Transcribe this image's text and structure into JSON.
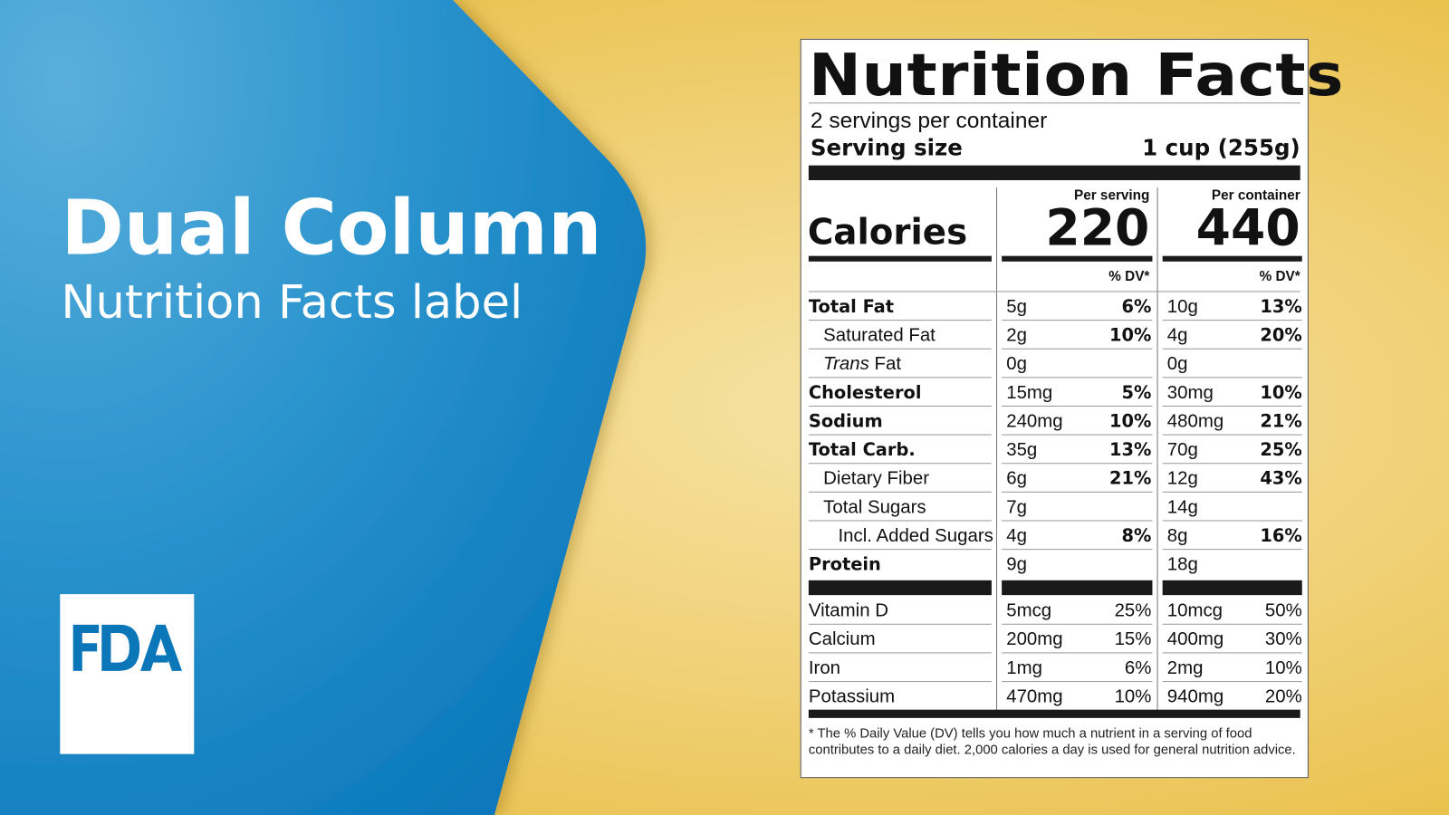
{
  "headline": {
    "title": "Dual Column",
    "subtitle": "Nutrition Facts label"
  },
  "logo": {
    "text": "FDA"
  },
  "colors": {
    "blue_light": "#4ea8d8",
    "blue_dark": "#0a78bb",
    "yellow": "#f1d27a",
    "fda_blue": "#0b76b8"
  },
  "label": {
    "title": "Nutrition Facts",
    "servings": "2 servings per container",
    "serving_size_label": "Serving size",
    "serving_size_value": "1 cup (255g)",
    "col1_header": "Per serving",
    "col2_header": "Per container",
    "calories_label": "Calories",
    "calories_col1": "220",
    "calories_col2": "440",
    "dv_header": "% DV*",
    "nutrients": [
      {
        "name": "Total Fat",
        "bold": true,
        "level": 0,
        "v1": "5g",
        "p1": "6%",
        "v2": "10g",
        "p2": "13%"
      },
      {
        "name": "Saturated Fat",
        "bold": false,
        "level": 1,
        "v1": "2g",
        "p1": "10%",
        "v2": "4g",
        "p2": "20%"
      },
      {
        "name_italic": "Trans",
        "name": " Fat",
        "bold": false,
        "level": 1,
        "v1": "0g",
        "p1": "",
        "v2": "0g",
        "p2": ""
      },
      {
        "name": "Cholesterol",
        "bold": true,
        "level": 0,
        "v1": "15mg",
        "p1": "5%",
        "v2": "30mg",
        "p2": "10%"
      },
      {
        "name": "Sodium",
        "bold": true,
        "level": 0,
        "v1": "240mg",
        "p1": "10%",
        "v2": "480mg",
        "p2": "21%"
      },
      {
        "name": "Total Carb.",
        "bold": true,
        "level": 0,
        "v1": "35g",
        "p1": "13%",
        "v2": "70g",
        "p2": "25%"
      },
      {
        "name": "Dietary Fiber",
        "bold": false,
        "level": 1,
        "v1": "6g",
        "p1": "21%",
        "v2": "12g",
        "p2": "43%"
      },
      {
        "name": "Total Sugars",
        "bold": false,
        "level": 1,
        "v1": "7g",
        "p1": "",
        "v2": "14g",
        "p2": ""
      },
      {
        "name": "Incl. Added Sugars",
        "bold": false,
        "level": 2,
        "v1": "4g",
        "p1": "8%",
        "v2": "8g",
        "p2": "16%"
      },
      {
        "name": "Protein",
        "bold": true,
        "level": 0,
        "v1": "9g",
        "p1": "",
        "v2": "18g",
        "p2": ""
      }
    ],
    "vitamins": [
      {
        "name": "Vitamin D",
        "v1": "5mcg",
        "p1": "25%",
        "v2": "10mcg",
        "p2": "50%"
      },
      {
        "name": "Calcium",
        "v1": "200mg",
        "p1": "15%",
        "v2": "400mg",
        "p2": "30%"
      },
      {
        "name": "Iron",
        "v1": "1mg",
        "p1": "6%",
        "v2": "2mg",
        "p2": "10%"
      },
      {
        "name": "Potassium",
        "v1": "470mg",
        "p1": "10%",
        "v2": "940mg",
        "p2": "20%"
      }
    ],
    "footnote": "* The % Daily Value (DV) tells you how much a nutrient in a serving of food contributes to a daily diet. 2,000 calories a day is used for general nutrition advice."
  }
}
